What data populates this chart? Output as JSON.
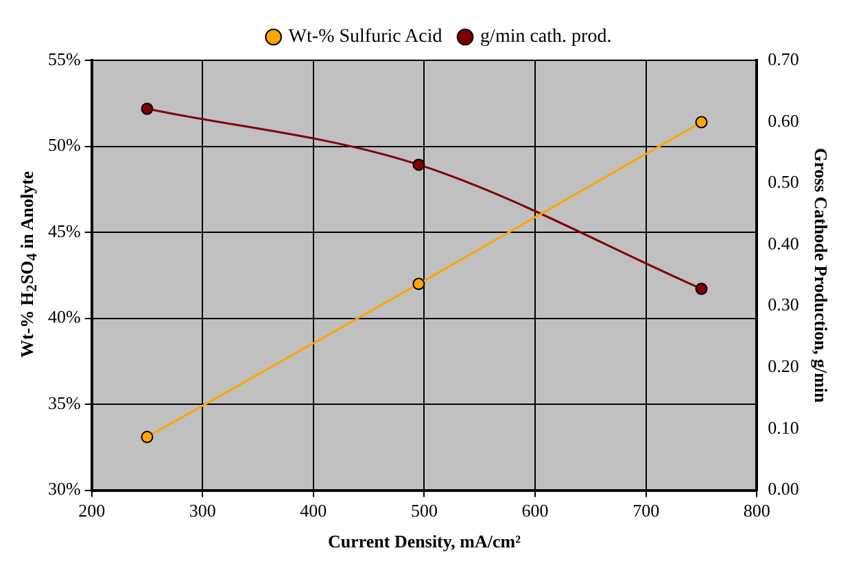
{
  "chart_data": {
    "type": "line",
    "xlabel": "Current Density, mA/cm²",
    "ylabel": "Wt-% H$_{2}$SO$_{4}$ in Anolyte",
    "y2label": "Gross Cathode Production, g/min",
    "series": [
      {
        "name": "Wt-% Sulfuric Acid",
        "color": "#ffa500",
        "x": [
          250,
          495,
          750
        ],
        "values": [
          33.1,
          42.0,
          51.4
        ]
      },
      {
        "name": "g/min cath. prod.",
        "color": "#800000",
        "x": [
          250,
          495,
          750
        ],
        "values": [
          0.621,
          0.53,
          0.328
        ],
        "axis": "y2"
      }
    ],
    "xlim": [
      200,
      800
    ],
    "xticks": [
      200,
      300,
      400,
      500,
      600,
      700,
      800
    ],
    "ylim": [
      30,
      55
    ],
    "yticks": [
      {
        "value": 30,
        "label": "30%"
      },
      {
        "value": 35,
        "label": "35%"
      },
      {
        "value": 40,
        "label": "40%"
      },
      {
        "value": 45,
        "label": "45%"
      },
      {
        "value": 50,
        "label": "50%"
      },
      {
        "value": 55,
        "label": "55%"
      }
    ],
    "y2lim": [
      0,
      0.7
    ],
    "y2ticks": [
      {
        "value": 0,
        "label": "0.00"
      },
      {
        "value": 0.1,
        "label": "0.10"
      },
      {
        "value": 0.2,
        "label": "0.20"
      },
      {
        "value": 0.3,
        "label": "0.30"
      },
      {
        "value": 0.4,
        "label": "0.40"
      },
      {
        "value": 0.5,
        "label": "0.50"
      },
      {
        "value": 0.6,
        "label": "0.60"
      },
      {
        "value": 0.7,
        "label": "0.70"
      }
    ],
    "grid": true,
    "legend": "top",
    "marker": "circle",
    "line_style": "solid"
  }
}
